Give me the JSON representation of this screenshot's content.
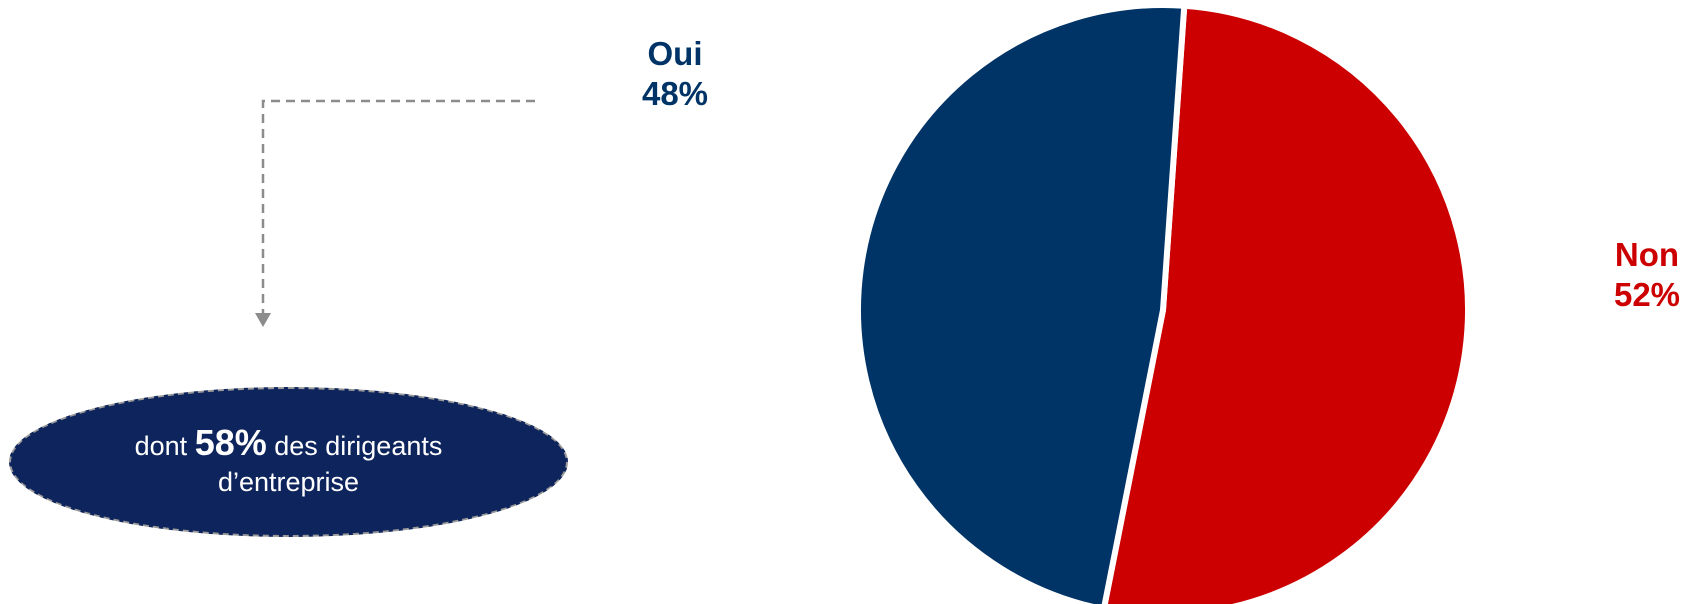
{
  "chart_data": {
    "type": "pie",
    "series": [
      {
        "name": "Oui",
        "value": 48,
        "label": "48%",
        "color": "#003366"
      },
      {
        "name": "Non",
        "value": 52,
        "label": "52%",
        "color": "#cc0000"
      }
    ]
  },
  "note": {
    "prefix": "dont ",
    "highlight": "58%",
    "suffix_line1": " des dirigeants",
    "line2": "d’entreprise",
    "fill_color": "#0e245c"
  },
  "colors": {
    "connector": "#8c8c8c"
  }
}
